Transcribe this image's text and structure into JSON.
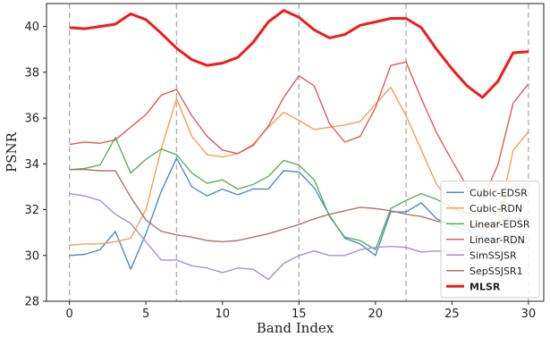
{
  "chart_data": {
    "type": "line",
    "xlabel": "Band Index",
    "ylabel": "PSNR",
    "xlim": [
      -1.5,
      31
    ],
    "ylim": [
      28,
      41
    ],
    "xticks": [
      0,
      5,
      10,
      15,
      20,
      25,
      30
    ],
    "yticks": [
      28,
      30,
      32,
      34,
      36,
      38,
      40
    ],
    "vlines": [
      0,
      7,
      15,
      22,
      30
    ],
    "legend_position": "lower-right",
    "x": [
      0,
      1,
      2,
      3,
      4,
      5,
      6,
      7,
      8,
      9,
      10,
      11,
      12,
      13,
      14,
      15,
      16,
      17,
      18,
      19,
      20,
      21,
      22,
      23,
      24,
      25,
      26,
      27,
      28,
      29,
      30
    ],
    "series": [
      {
        "name": "Cubic-EDSR",
        "color": "#4c8cc4",
        "width": 1.4,
        "values": [
          30.0,
          30.05,
          30.25,
          31.05,
          29.4,
          30.95,
          32.8,
          34.25,
          33.0,
          32.6,
          32.9,
          32.65,
          32.9,
          32.9,
          33.7,
          33.65,
          32.95,
          31.75,
          30.75,
          30.5,
          30.0,
          31.9,
          31.9,
          32.3,
          31.6,
          31.3,
          31.1,
          30.8,
          30.7,
          30.9,
          30.9
        ]
      },
      {
        "name": "Cubic-RDN",
        "color": "#f5a053",
        "width": 1.4,
        "values": [
          30.45,
          30.5,
          30.5,
          30.6,
          30.75,
          32.0,
          34.65,
          36.85,
          35.2,
          34.4,
          34.3,
          34.45,
          34.85,
          35.6,
          36.25,
          35.9,
          35.5,
          35.6,
          35.7,
          35.85,
          36.6,
          37.35,
          36.1,
          34.6,
          33.1,
          32.25,
          31.45,
          31.15,
          31.45,
          34.6,
          35.4
        ]
      },
      {
        "name": "Linear-EDSR",
        "color": "#5cb05c",
        "width": 1.4,
        "values": [
          33.75,
          33.8,
          33.95,
          35.15,
          33.6,
          34.2,
          34.65,
          34.4,
          33.6,
          33.15,
          33.3,
          32.9,
          33.1,
          33.45,
          34.15,
          33.95,
          33.3,
          31.7,
          30.8,
          30.65,
          30.25,
          32.05,
          32.4,
          32.7,
          32.45,
          32.1,
          31.85,
          31.8,
          31.85,
          33.1,
          32.9
        ]
      },
      {
        "name": "Linear-RDN",
        "color": "#dc5c5c",
        "width": 1.4,
        "values": [
          34.85,
          34.95,
          34.9,
          35.05,
          35.6,
          36.15,
          37.0,
          37.25,
          36.1,
          35.2,
          34.6,
          34.45,
          34.8,
          35.65,
          36.9,
          37.85,
          37.4,
          35.75,
          34.95,
          35.2,
          36.45,
          38.3,
          38.45,
          36.85,
          35.35,
          34.15,
          33.0,
          32.45,
          33.95,
          36.65,
          37.5
        ]
      },
      {
        "name": "SimSSJSR",
        "color": "#ab8ecf",
        "width": 1.4,
        "values": [
          32.7,
          32.6,
          32.4,
          31.8,
          31.4,
          30.6,
          29.8,
          29.8,
          29.55,
          29.45,
          29.25,
          29.45,
          29.4,
          28.95,
          29.65,
          30.0,
          30.2,
          30.0,
          30.0,
          30.25,
          30.35,
          30.4,
          30.35,
          30.15,
          30.2,
          30.15,
          30.25,
          30.4,
          30.45,
          30.5,
          30.6
        ]
      },
      {
        "name": "SepSSJSR1",
        "color": "#a9786a",
        "width": 1.4,
        "values": [
          33.75,
          33.75,
          33.7,
          33.7,
          32.55,
          31.55,
          31.05,
          30.9,
          30.8,
          30.65,
          30.6,
          30.65,
          30.8,
          30.95,
          31.15,
          31.35,
          31.6,
          31.8,
          31.95,
          32.1,
          32.05,
          31.95,
          31.8,
          31.7,
          31.5,
          31.35,
          31.3,
          31.35,
          31.5,
          31.65,
          31.6
        ]
      },
      {
        "name": "MLSR",
        "color": "#ee1c1c",
        "width": 3,
        "values": [
          39.95,
          39.9,
          40.0,
          40.1,
          40.55,
          40.3,
          39.7,
          39.05,
          38.55,
          38.3,
          38.4,
          38.65,
          39.3,
          40.2,
          40.7,
          40.4,
          39.85,
          39.5,
          39.65,
          40.05,
          40.2,
          40.35,
          40.35,
          39.95,
          39.0,
          38.15,
          37.4,
          36.9,
          37.6,
          38.85,
          38.9
        ]
      }
    ]
  }
}
